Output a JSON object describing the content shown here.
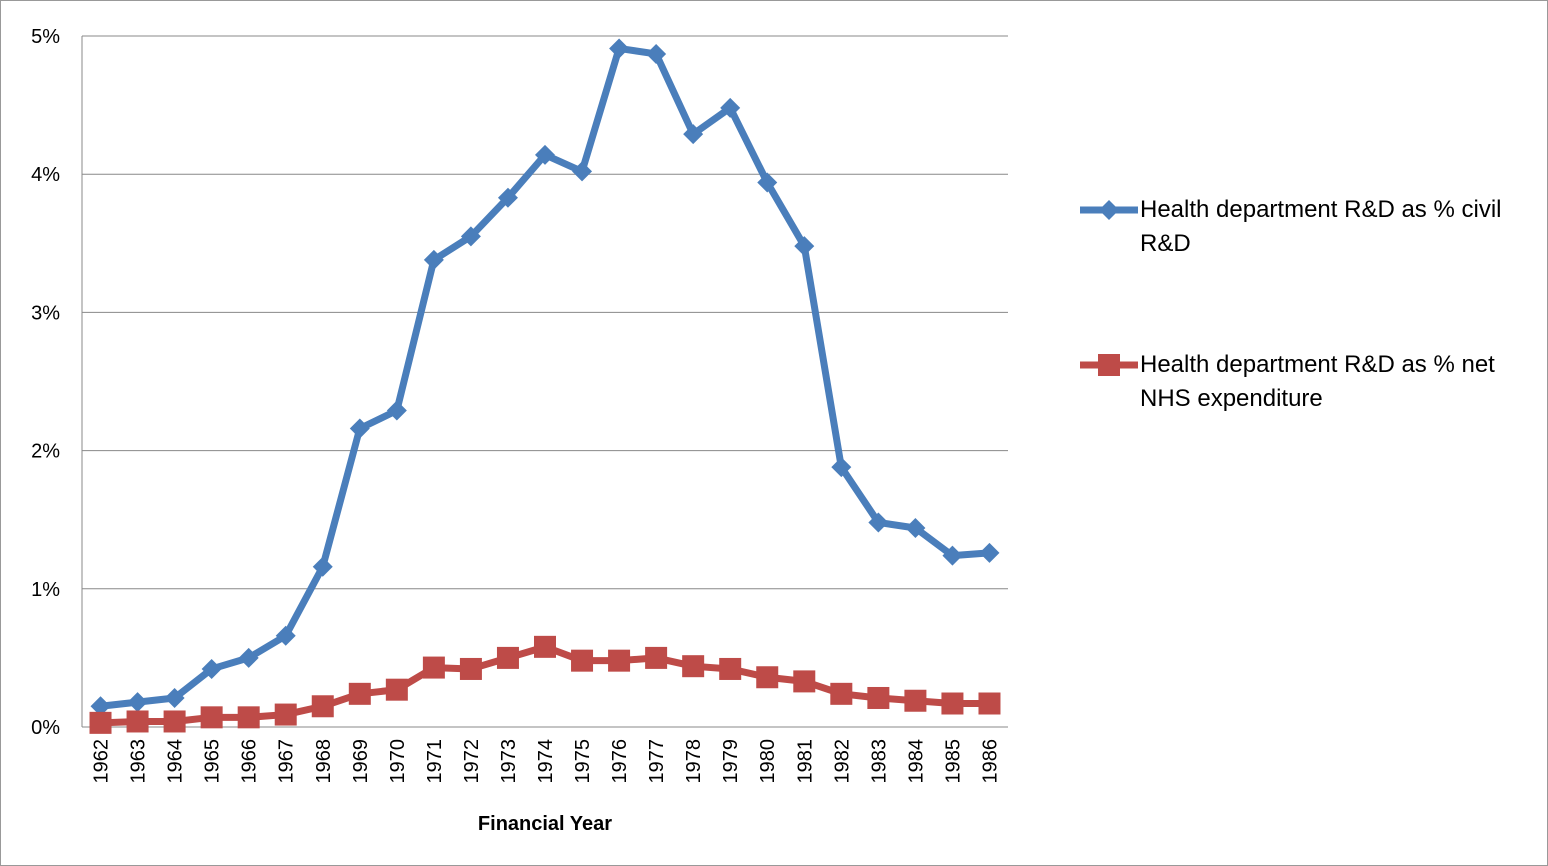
{
  "chart_data": {
    "type": "line",
    "x_label": "Financial Year",
    "categories": [
      "1962",
      "1963",
      "1964",
      "1965",
      "1966",
      "1967",
      "1968",
      "1969",
      "1970",
      "1971",
      "1972",
      "1973",
      "1974",
      "1975",
      "1976",
      "1977",
      "1978",
      "1979",
      "1980",
      "1981",
      "1982",
      "1983",
      "1984",
      "1985",
      "1986"
    ],
    "series": [
      {
        "name": "Health department R&D as % civil R&D",
        "color": "#4a7ebb",
        "marker": "diamond",
        "values": [
          0.15,
          0.18,
          0.21,
          0.42,
          0.5,
          0.66,
          1.16,
          2.16,
          2.29,
          3.38,
          3.55,
          3.83,
          4.14,
          4.02,
          4.91,
          4.87,
          4.29,
          4.48,
          3.94,
          3.48,
          1.88,
          1.48,
          1.44,
          1.24,
          1.26
        ]
      },
      {
        "name": "Health department R&D as % net NHS expenditure",
        "color": "#be4b48",
        "marker": "square",
        "values": [
          0.03,
          0.04,
          0.04,
          0.07,
          0.07,
          0.09,
          0.15,
          0.24,
          0.27,
          0.43,
          0.42,
          0.5,
          0.58,
          0.48,
          0.48,
          0.5,
          0.44,
          0.42,
          0.36,
          0.33,
          0.24,
          0.21,
          0.19,
          0.17,
          0.17
        ]
      }
    ],
    "ylim": [
      0,
      5
    ],
    "yticks": [
      {
        "value": 0,
        "label": "0%"
      },
      {
        "value": 1,
        "label": "1%"
      },
      {
        "value": 2,
        "label": "2%"
      },
      {
        "value": 3,
        "label": "3%"
      },
      {
        "value": 4,
        "label": "4%"
      },
      {
        "value": 5,
        "label": "5%"
      }
    ],
    "grid": true,
    "legend": "right"
  }
}
